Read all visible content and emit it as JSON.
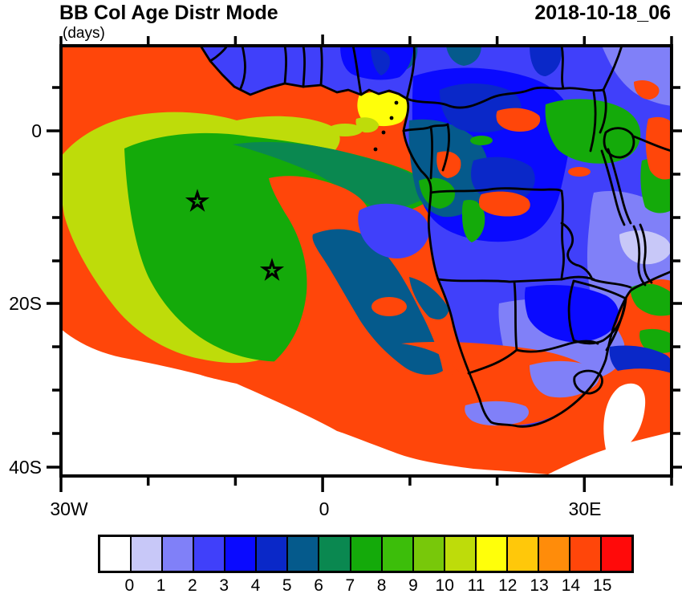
{
  "header": {
    "title": "BB Col Age Distr Mode",
    "units_label": "(days)",
    "timestamp": "2018-10-18_06"
  },
  "map": {
    "x_axis": {
      "labels": [
        "30W",
        "0",
        "30E"
      ]
    },
    "y_axis": {
      "labels": [
        "0",
        "20S",
        "40S"
      ]
    },
    "star_markers": [
      {
        "approx_lon": "15W",
        "approx_lat": "8S"
      },
      {
        "approx_lon": "6W",
        "approx_lat": "16S"
      }
    ]
  },
  "colorbar": {
    "colors": [
      "#ffffff",
      "#c8c8f8",
      "#8080f8",
      "#4040fa",
      "#0a0aff",
      "#0a28c8",
      "#055a8c",
      "#0a8850",
      "#14aa0a",
      "#3cbe0a",
      "#78c80a",
      "#bedc0a",
      "#ffff0a",
      "#ffc80a",
      "#ff8c0a",
      "#ff460a",
      "#ff0a0a"
    ],
    "tick_labels": [
      "0",
      "1",
      "2",
      "3",
      "4",
      "5",
      "6",
      "7",
      "8",
      "9",
      "10",
      "11",
      "12",
      "13",
      "14",
      "15"
    ]
  },
  "chart_data": {
    "type": "heatmap",
    "title": "BB Col Age Distr Mode",
    "units": "days",
    "timestamp": "2018-10-18_06",
    "x_tick_labels": [
      "30W",
      "0",
      "30E"
    ],
    "y_tick_labels": [
      "0",
      "20S",
      "40S"
    ],
    "levels": [
      0,
      1,
      2,
      3,
      4,
      5,
      6,
      7,
      8,
      9,
      10,
      11,
      12,
      13,
      14,
      15
    ],
    "palette": [
      "#ffffff",
      "#c8c8f8",
      "#8080f8",
      "#4040fa",
      "#0a0aff",
      "#0a28c8",
      "#055a8c",
      "#0a8850",
      "#14aa0a",
      "#3cbe0a",
      "#78c80a",
      "#bedc0a",
      "#ffff0a",
      "#ffc80a",
      "#ff8c0a",
      "#ff460a",
      "#ff0a0a"
    ],
    "legend_position": "bottom"
  }
}
